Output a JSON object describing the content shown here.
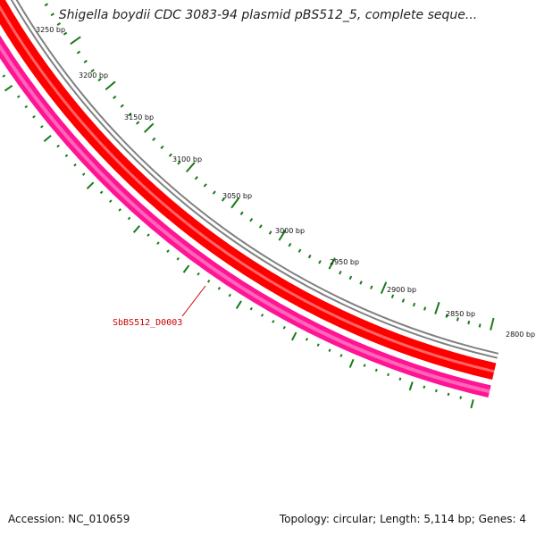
{
  "title": "Shigella boydii CDC 3083-94 plasmid pBS512_5, complete seque...",
  "footer": {
    "accession": "Accession: NC_010659",
    "summary": "Topology: circular; Length: 5,114 bp; Genes: 4"
  },
  "map": {
    "tick_labels": [
      "3250 bp",
      "3200 bp",
      "3150 bp",
      "3100 bp",
      "3050 bp",
      "3000 bp",
      "2950 bp",
      "2900 bp",
      "2850 bp",
      "2800 bp"
    ],
    "gene_label": "SbBS512_D0003",
    "colors": {
      "backbone": "#808080",
      "cds_forward": "#ff0000",
      "cds_reverse": "#ff1493",
      "ticks": "#1a7a1a",
      "gene_label": "#cc0000"
    }
  }
}
